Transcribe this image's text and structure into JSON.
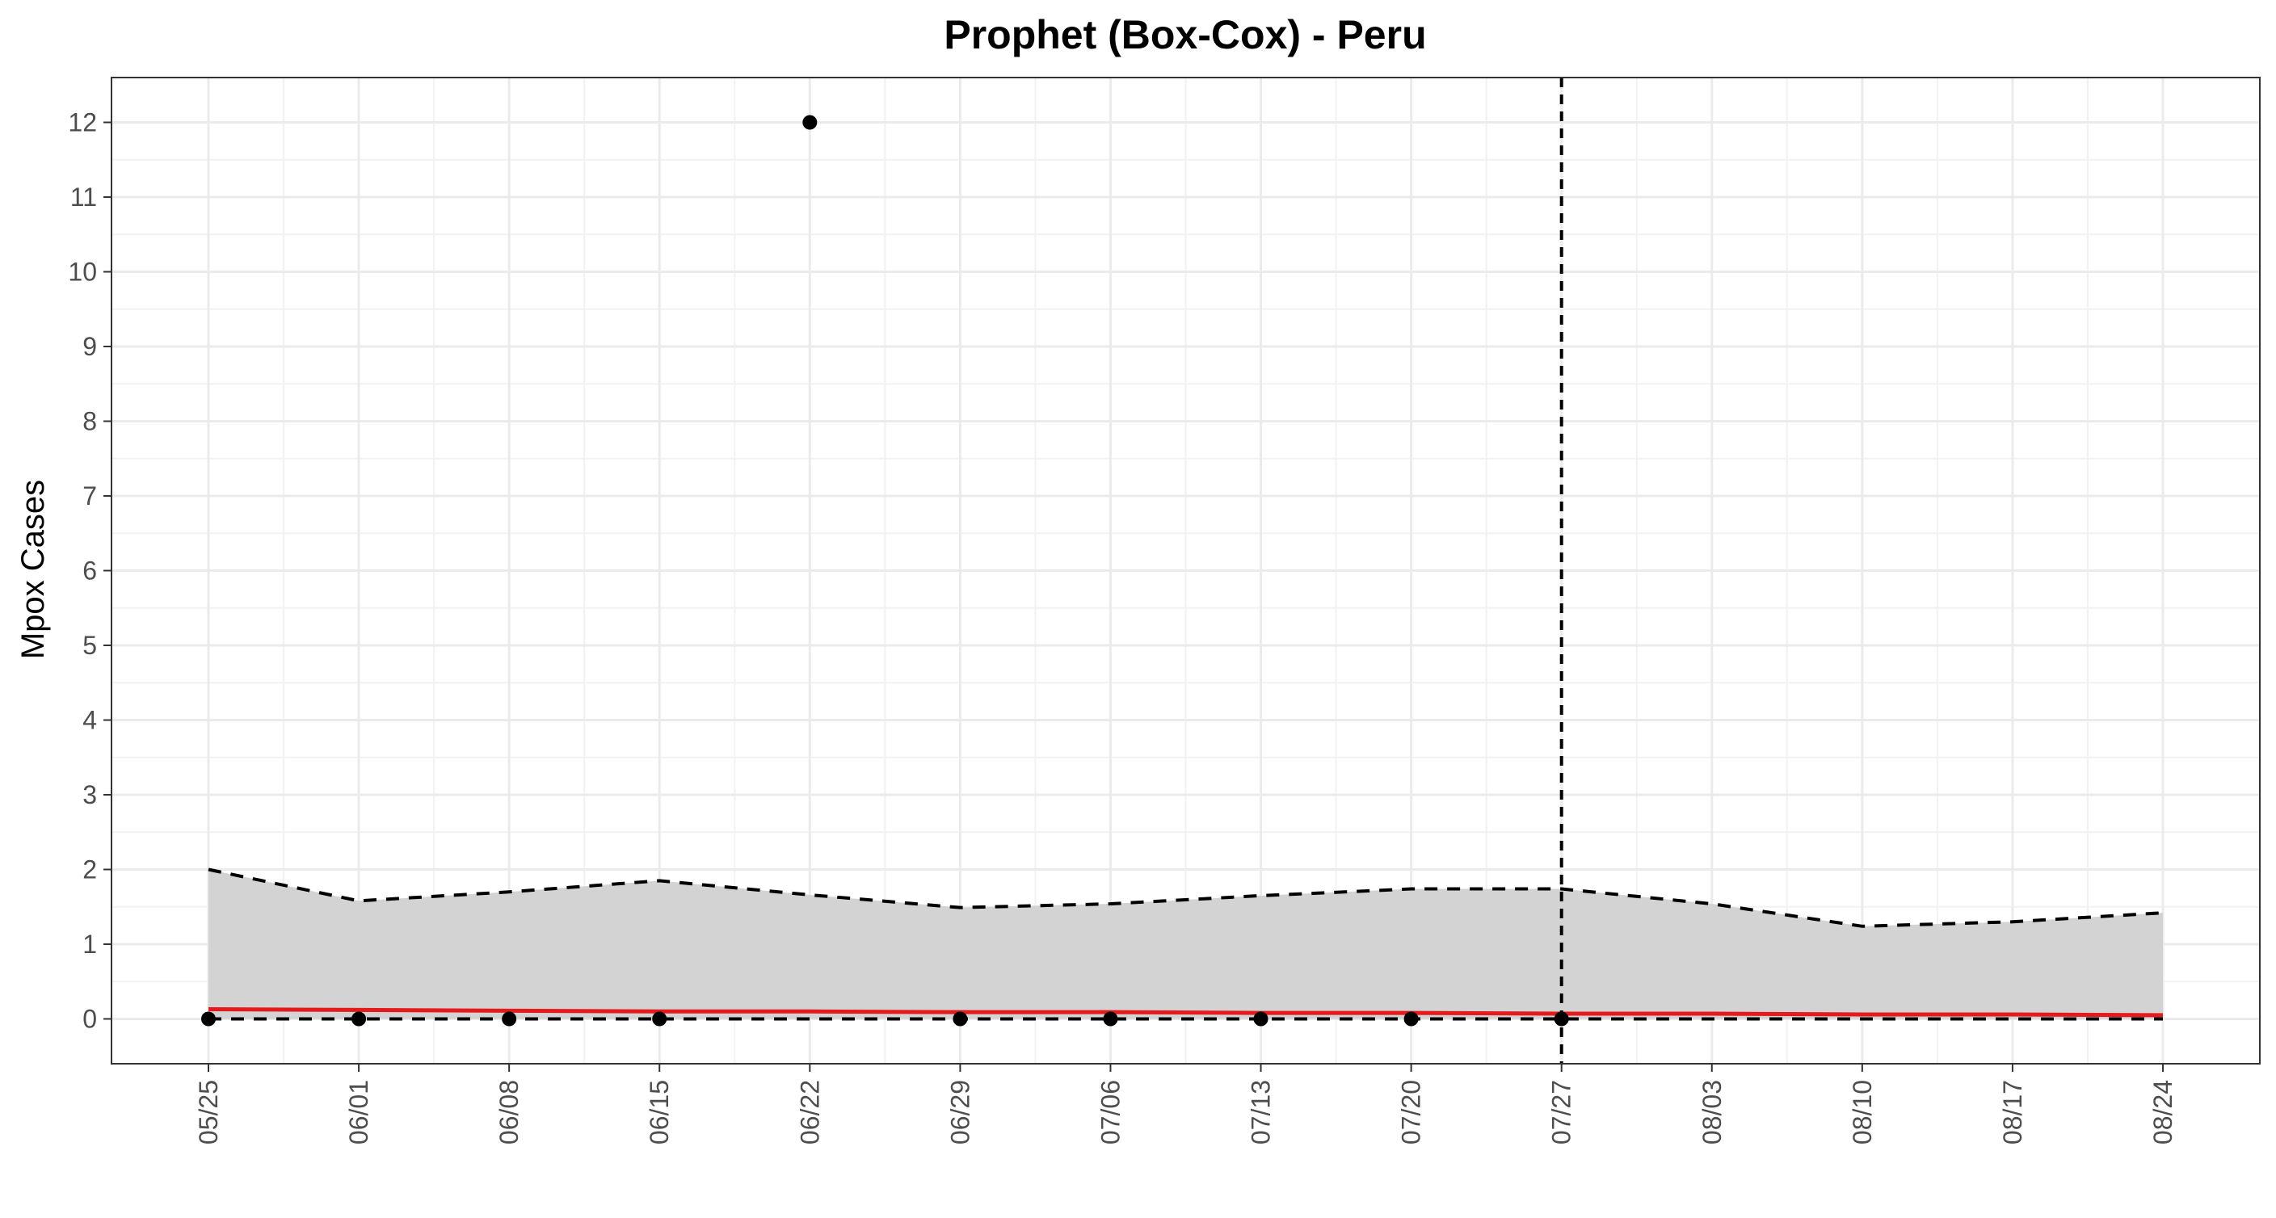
{
  "chart_data": {
    "type": "line",
    "title": "Prophet (Box-Cox) - Peru",
    "xlabel": "",
    "ylabel": "Mpox Cases",
    "x_tick_labels": [
      "05/25",
      "06/01",
      "06/08",
      "06/15",
      "06/22",
      "06/29",
      "07/06",
      "07/13",
      "07/20",
      "07/27",
      "08/03",
      "08/10",
      "08/17",
      "08/24"
    ],
    "y_tick_labels": [
      "0",
      "1",
      "2",
      "3",
      "4",
      "5",
      "6",
      "7",
      "8",
      "9",
      "10",
      "11",
      "12"
    ],
    "ylim": [
      -0.6,
      12.6
    ],
    "grid": true,
    "forecast_start": "07/27",
    "observed": {
      "x": [
        "05/25",
        "06/01",
        "06/08",
        "06/15",
        "06/22",
        "06/29",
        "07/06",
        "07/13",
        "07/20",
        "07/27"
      ],
      "y": [
        0,
        0,
        0,
        0,
        12,
        0,
        0,
        0,
        0,
        0
      ]
    },
    "fitted": {
      "x": [
        "05/25",
        "06/01",
        "06/08",
        "06/15",
        "06/22",
        "06/29",
        "07/06",
        "07/13",
        "07/20",
        "07/27",
        "08/03",
        "08/10",
        "08/17",
        "08/24"
      ],
      "y": [
        0.13,
        0.12,
        0.11,
        0.1,
        0.1,
        0.09,
        0.09,
        0.08,
        0.08,
        0.07,
        0.07,
        0.06,
        0.06,
        0.05
      ]
    },
    "upper": {
      "x": [
        "05/25",
        "06/01",
        "06/08",
        "06/15",
        "06/22",
        "06/29",
        "07/06",
        "07/13",
        "07/20",
        "07/27",
        "08/03",
        "08/10",
        "08/17",
        "08/24"
      ],
      "y": [
        2.0,
        1.58,
        1.7,
        1.85,
        1.66,
        1.49,
        1.54,
        1.65,
        1.74,
        1.74,
        1.54,
        1.24,
        1.3,
        1.42
      ]
    },
    "lower": {
      "x": [
        "05/25",
        "06/01",
        "06/08",
        "06/15",
        "06/22",
        "06/29",
        "07/06",
        "07/13",
        "07/20",
        "07/27",
        "08/03",
        "08/10",
        "08/17",
        "08/24"
      ],
      "y": [
        0,
        0,
        0,
        0,
        0,
        0,
        0,
        0,
        0,
        0,
        0,
        0,
        0,
        0
      ]
    },
    "colors": {
      "fitted": "#e41a1c",
      "band": "#d3d3d3",
      "points": "#000000",
      "bounds": "#000000"
    }
  }
}
